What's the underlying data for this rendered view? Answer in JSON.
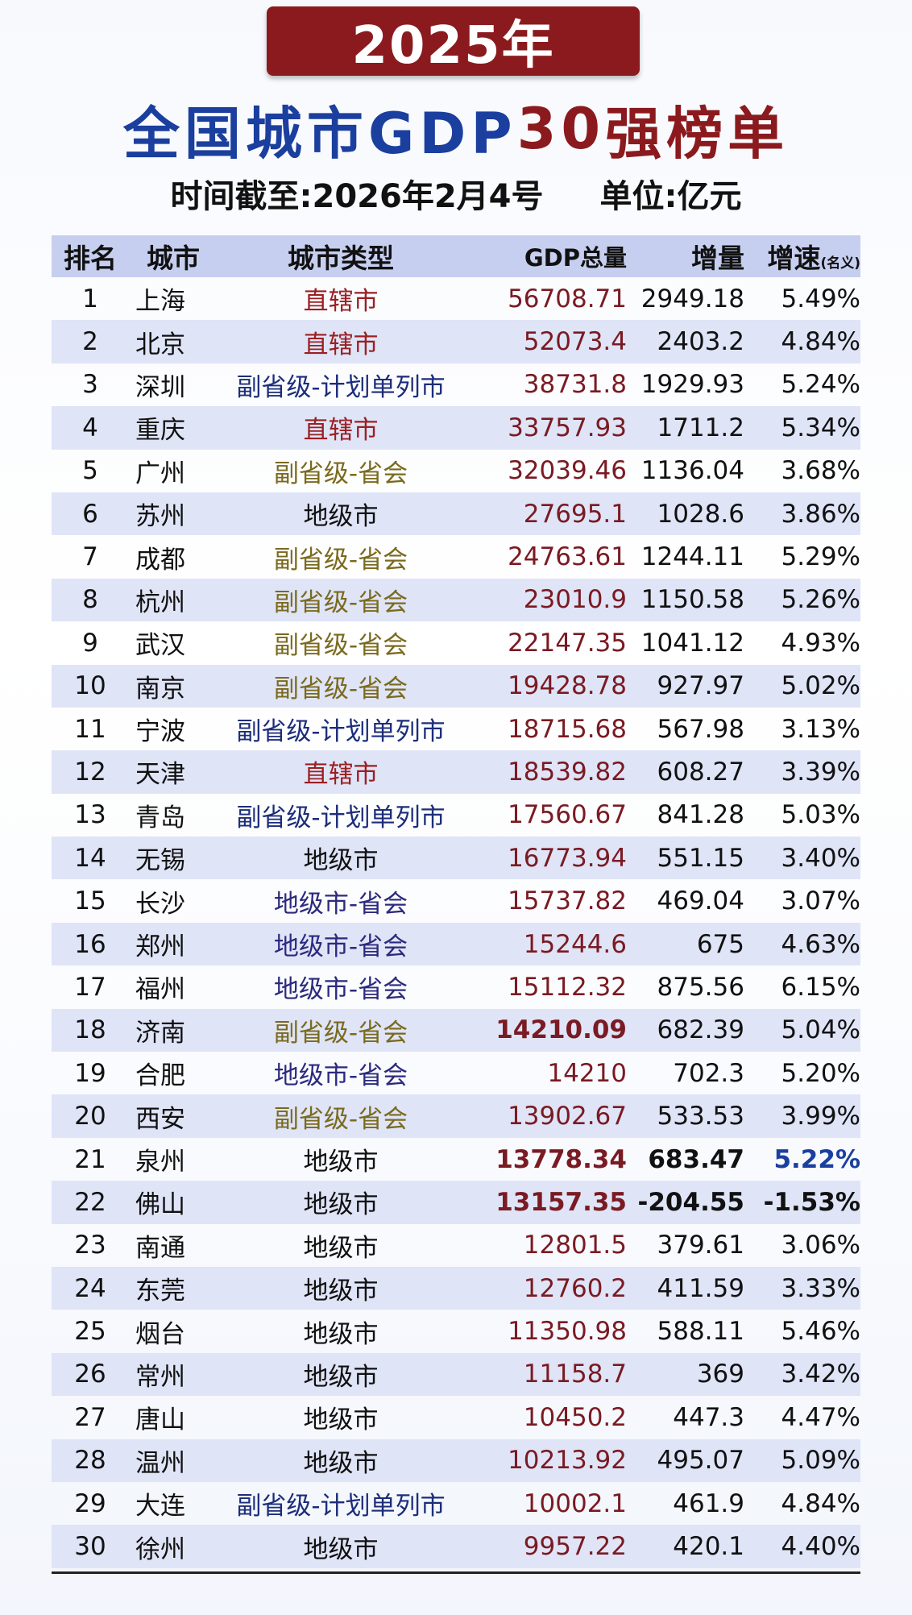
{
  "banner": {
    "year": "2025年"
  },
  "title": {
    "part1": "全国城市GDP",
    "part2": "30",
    "part3": "强榜单"
  },
  "subtitle": {
    "date": "时间截至:2026年2月4号",
    "unit": "单位:亿元"
  },
  "table": {
    "headers": {
      "rank": "排名",
      "city": "城市",
      "type": "城市类型",
      "gdp": "GDP总量",
      "increase": "增量",
      "rate": "增速",
      "rate_note": "(名义)"
    },
    "rows": [
      {
        "rank": "1",
        "city": "上海",
        "type": "直辖市",
        "gdp": "56708.71",
        "increase": "2949.18",
        "rate": "5.49%"
      },
      {
        "rank": "2",
        "city": "北京",
        "type": "直辖市",
        "gdp": "52073.4",
        "increase": "2403.2",
        "rate": "4.84%"
      },
      {
        "rank": "3",
        "city": "深圳",
        "type": "副省级-计划单列市",
        "gdp": "38731.8",
        "increase": "1929.93",
        "rate": "5.24%"
      },
      {
        "rank": "4",
        "city": "重庆",
        "type": "直辖市",
        "gdp": "33757.93",
        "increase": "1711.2",
        "rate": "5.34%"
      },
      {
        "rank": "5",
        "city": "广州",
        "type": "副省级-省会",
        "gdp": "32039.46",
        "increase": "1136.04",
        "rate": "3.68%"
      },
      {
        "rank": "6",
        "city": "苏州",
        "type": "地级市",
        "gdp": "27695.1",
        "increase": "1028.6",
        "rate": "3.86%"
      },
      {
        "rank": "7",
        "city": "成都",
        "type": "副省级-省会",
        "gdp": "24763.61",
        "increase": "1244.11",
        "rate": "5.29%"
      },
      {
        "rank": "8",
        "city": "杭州",
        "type": "副省级-省会",
        "gdp": "23010.9",
        "increase": "1150.58",
        "rate": "5.26%"
      },
      {
        "rank": "9",
        "city": "武汉",
        "type": "副省级-省会",
        "gdp": "22147.35",
        "increase": "1041.12",
        "rate": "4.93%"
      },
      {
        "rank": "10",
        "city": "南京",
        "type": "副省级-省会",
        "gdp": "19428.78",
        "increase": "927.97",
        "rate": "5.02%"
      },
      {
        "rank": "11",
        "city": "宁波",
        "type": "副省级-计划单列市",
        "gdp": "18715.68",
        "increase": "567.98",
        "rate": "3.13%"
      },
      {
        "rank": "12",
        "city": "天津",
        "type": "直辖市",
        "gdp": "18539.82",
        "increase": "608.27",
        "rate": "3.39%"
      },
      {
        "rank": "13",
        "city": "青岛",
        "type": "副省级-计划单列市",
        "gdp": "17560.67",
        "increase": "841.28",
        "rate": "5.03%"
      },
      {
        "rank": "14",
        "city": "无锡",
        "type": "地级市",
        "gdp": "16773.94",
        "increase": "551.15",
        "rate": "3.40%"
      },
      {
        "rank": "15",
        "city": "长沙",
        "type": "地级市-省会",
        "gdp": "15737.82",
        "increase": "469.04",
        "rate": "3.07%"
      },
      {
        "rank": "16",
        "city": "郑州",
        "type": "地级市-省会",
        "gdp": "15244.6",
        "increase": "675",
        "rate": "4.63%"
      },
      {
        "rank": "17",
        "city": "福州",
        "type": "地级市-省会",
        "gdp": "15112.32",
        "increase": "875.56",
        "rate": "6.15%"
      },
      {
        "rank": "18",
        "city": "济南",
        "type": "副省级-省会",
        "gdp": "14210.09",
        "increase": "682.39",
        "rate": "5.04%"
      },
      {
        "rank": "19",
        "city": "合肥",
        "type": "地级市-省会",
        "gdp": "14210",
        "increase": "702.3",
        "rate": "5.20%"
      },
      {
        "rank": "20",
        "city": "西安",
        "type": "副省级-省会",
        "gdp": "13902.67",
        "increase": "533.53",
        "rate": "3.99%"
      },
      {
        "rank": "21",
        "city": "泉州",
        "type": "地级市",
        "gdp": "13778.34",
        "increase": "683.47",
        "rate": "5.22%"
      },
      {
        "rank": "22",
        "city": "佛山",
        "type": "地级市",
        "gdp": "13157.35",
        "increase": "-204.55",
        "rate": "-1.53%"
      },
      {
        "rank": "23",
        "city": "南通",
        "type": "地级市",
        "gdp": "12801.5",
        "increase": "379.61",
        "rate": "3.06%"
      },
      {
        "rank": "24",
        "city": "东莞",
        "type": "地级市",
        "gdp": "12760.2",
        "increase": "411.59",
        "rate": "3.33%"
      },
      {
        "rank": "25",
        "city": "烟台",
        "type": "地级市",
        "gdp": "11350.98",
        "increase": "588.11",
        "rate": "5.46%"
      },
      {
        "rank": "26",
        "city": "常州",
        "type": "地级市",
        "gdp": "11158.7",
        "increase": "369",
        "rate": "3.42%"
      },
      {
        "rank": "27",
        "city": "唐山",
        "type": "地级市",
        "gdp": "10450.2",
        "increase": "447.3",
        "rate": "4.47%"
      },
      {
        "rank": "28",
        "city": "温州",
        "type": "地级市",
        "gdp": "10213.92",
        "increase": "495.07",
        "rate": "5.09%"
      },
      {
        "rank": "29",
        "city": "大连",
        "type": "副省级-计划单列市",
        "gdp": "10002.1",
        "increase": "461.9",
        "rate": "4.84%"
      },
      {
        "rank": "30",
        "city": "徐州",
        "type": "地级市",
        "gdp": "9957.22",
        "increase": "420.1",
        "rate": "4.40%"
      }
    ]
  },
  "colors": {
    "banner_bg": "#8b1a1e",
    "title_blue": "#1b3f9e",
    "header_bg": "#c7cff0",
    "alt_row_bg": "#dfe4f7",
    "gdp_text": "#7a1a22"
  }
}
